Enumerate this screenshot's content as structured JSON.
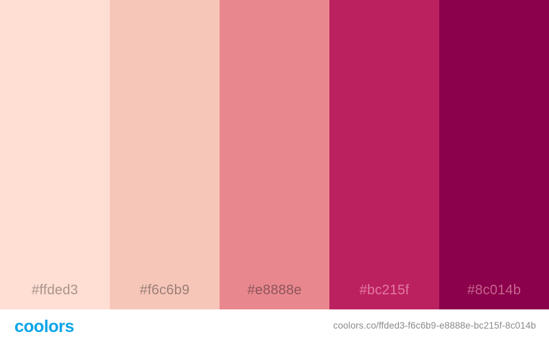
{
  "palette": {
    "swatches": [
      {
        "hex": "#ffded3",
        "label": "#ffded3",
        "label_color": "#a8948c"
      },
      {
        "hex": "#f6c6b9",
        "label": "#f6c6b9",
        "label_color": "#9b7f77"
      },
      {
        "hex": "#e8888e",
        "label": "#e8888e",
        "label_color": "#8e5559"
      },
      {
        "hex": "#bc215f",
        "label": "#bc215f",
        "label_color": "#e17aa3"
      },
      {
        "hex": "#8c014b",
        "label": "#8c014b",
        "label_color": "#c5648f"
      }
    ]
  },
  "footer": {
    "logo_text": "coolors",
    "logo_color": "#0aa5e9",
    "url": "coolors.co/ffded3-f6c6b9-e8888e-bc215f-8c014b"
  }
}
